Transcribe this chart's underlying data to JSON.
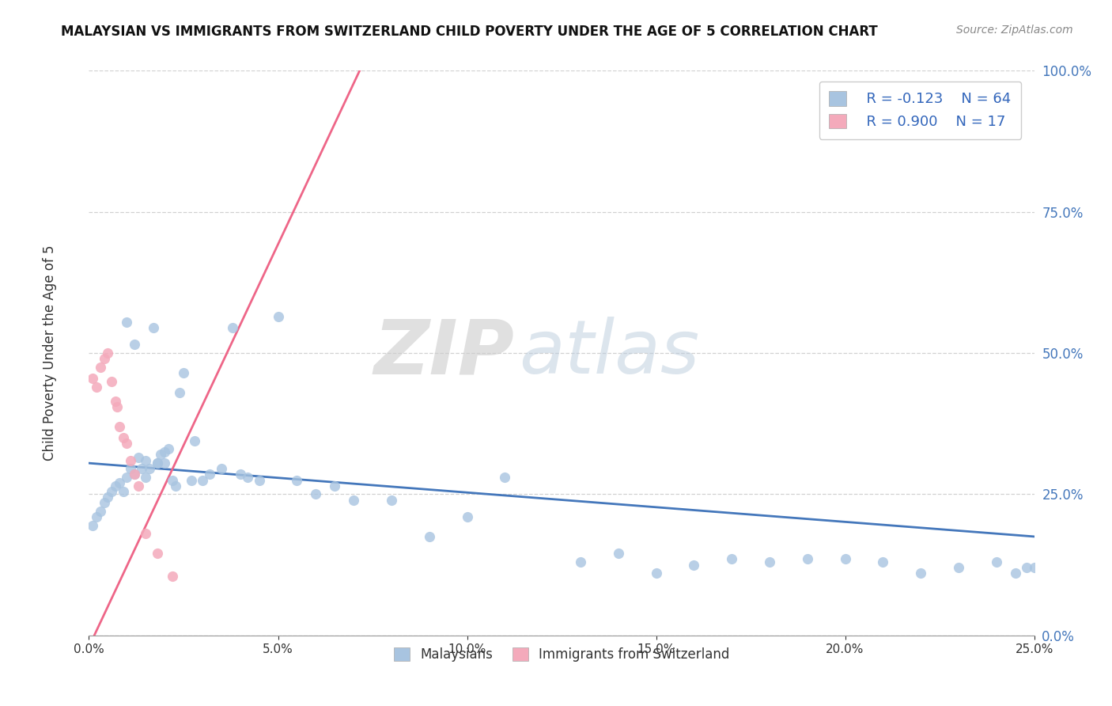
{
  "title": "MALAYSIAN VS IMMIGRANTS FROM SWITZERLAND CHILD POVERTY UNDER THE AGE OF 5 CORRELATION CHART",
  "source": "Source: ZipAtlas.com",
  "ylabel_left": "Child Poverty Under the Age of 5",
  "xmin": 0.0,
  "xmax": 0.25,
  "ymin": 0.0,
  "ymax": 1.0,
  "xticks": [
    0.0,
    0.05,
    0.1,
    0.15,
    0.2,
    0.25
  ],
  "xtick_labels": [
    "0.0%",
    "5.0%",
    "10.0%",
    "15.0%",
    "20.0%",
    "25.0%"
  ],
  "yticks": [
    0.0,
    0.25,
    0.5,
    0.75,
    1.0
  ],
  "ytick_labels": [
    "0.0%",
    "25.0%",
    "50.0%",
    "75.0%",
    "100.0%"
  ],
  "blue_color": "#A8C4E0",
  "pink_color": "#F4AABB",
  "blue_line_color": "#4477BB",
  "pink_line_color": "#EE6688",
  "legend_R_blue": "R = -0.123",
  "legend_N_blue": "N = 64",
  "legend_R_pink": "R = 0.900",
  "legend_N_pink": "N = 17",
  "blue_scatter_x": [
    0.001,
    0.002,
    0.003,
    0.004,
    0.005,
    0.006,
    0.007,
    0.008,
    0.009,
    0.01,
    0.011,
    0.012,
    0.013,
    0.014,
    0.015,
    0.016,
    0.017,
    0.018,
    0.019,
    0.02,
    0.021,
    0.022,
    0.023,
    0.024,
    0.025,
    0.027,
    0.028,
    0.03,
    0.032,
    0.035,
    0.038,
    0.04,
    0.042,
    0.045,
    0.05,
    0.055,
    0.06,
    0.065,
    0.07,
    0.08,
    0.09,
    0.1,
    0.11,
    0.13,
    0.14,
    0.15,
    0.16,
    0.17,
    0.18,
    0.19,
    0.2,
    0.21,
    0.22,
    0.23,
    0.24,
    0.245,
    0.248,
    0.25,
    0.252,
    0.01,
    0.012,
    0.015,
    0.018,
    0.02
  ],
  "blue_scatter_y": [
    0.195,
    0.21,
    0.22,
    0.235,
    0.245,
    0.255,
    0.265,
    0.27,
    0.255,
    0.28,
    0.295,
    0.285,
    0.315,
    0.295,
    0.28,
    0.295,
    0.545,
    0.305,
    0.32,
    0.305,
    0.33,
    0.275,
    0.265,
    0.43,
    0.465,
    0.275,
    0.345,
    0.275,
    0.285,
    0.295,
    0.545,
    0.285,
    0.28,
    0.275,
    0.565,
    0.275,
    0.25,
    0.265,
    0.24,
    0.24,
    0.175,
    0.21,
    0.28,
    0.13,
    0.145,
    0.11,
    0.125,
    0.135,
    0.13,
    0.135,
    0.135,
    0.13,
    0.11,
    0.12,
    0.13,
    0.11,
    0.12,
    0.12,
    0.105,
    0.555,
    0.515,
    0.31,
    0.305,
    0.325
  ],
  "pink_scatter_x": [
    0.001,
    0.002,
    0.003,
    0.004,
    0.005,
    0.006,
    0.007,
    0.0075,
    0.008,
    0.009,
    0.01,
    0.011,
    0.012,
    0.013,
    0.015,
    0.018,
    0.022
  ],
  "pink_scatter_y": [
    0.455,
    0.44,
    0.475,
    0.49,
    0.5,
    0.45,
    0.415,
    0.405,
    0.37,
    0.35,
    0.34,
    0.31,
    0.285,
    0.265,
    0.18,
    0.145,
    0.105
  ],
  "blue_trend_x0": 0.0,
  "blue_trend_x1": 0.25,
  "blue_trend_y0": 0.305,
  "blue_trend_y1": 0.175,
  "pink_trend_x0": 0.0,
  "pink_trend_x1": 0.073,
  "pink_trend_y0": -0.02,
  "pink_trend_y1": 1.02,
  "background_color": "#FFFFFF",
  "grid_color": "#CCCCCC",
  "legend_label_blue": "Malaysians",
  "legend_label_pink": "Immigrants from Switzerland"
}
